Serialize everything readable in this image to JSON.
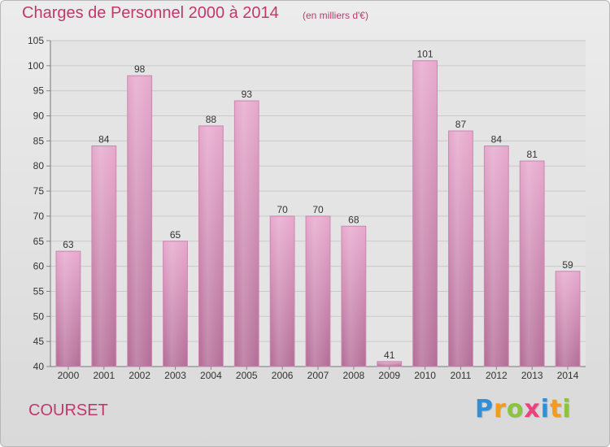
{
  "title": "Charges de Personnel 2000 à 2014",
  "subtitle": "(en milliers d'€)",
  "commune": "COURSET",
  "logo": {
    "text": "Proxiti",
    "letters": [
      {
        "char": "P",
        "color": "#2f8fd8"
      },
      {
        "char": "r",
        "color": "#f29b1c"
      },
      {
        "char": "o",
        "color": "#8bc43f"
      },
      {
        "char": "x",
        "color": "#e9427d"
      },
      {
        "char": "i",
        "color": "#2f8fd8"
      },
      {
        "char": "t",
        "color": "#f29b1c"
      },
      {
        "char": "i",
        "color": "#8bc43f"
      }
    ]
  },
  "colors": {
    "bar_top": "#e7a9cd",
    "bar_bottom": "#b46e97",
    "bar_edge": "#c98ab0",
    "grid": "#c9c9c9",
    "plot_bg": "#e4e4e4",
    "text_accent": "#c0396a"
  },
  "chart_data": {
    "type": "bar",
    "title": "Charges de Personnel 2000 à 2014",
    "subtitle": "(en milliers d'€)",
    "categories": [
      "2000",
      "2001",
      "2002",
      "2003",
      "2004",
      "2005",
      "2006",
      "2007",
      "2008",
      "2009",
      "2010",
      "2011",
      "2012",
      "2013",
      "2014"
    ],
    "values": [
      63,
      84,
      98,
      65,
      88,
      93,
      70,
      70,
      68,
      41,
      101,
      87,
      84,
      81,
      59
    ],
    "ylim": [
      40,
      105
    ],
    "yticks": [
      40,
      45,
      50,
      55,
      60,
      65,
      70,
      75,
      80,
      85,
      90,
      95,
      100,
      105
    ],
    "grid": true,
    "legend": "none"
  }
}
